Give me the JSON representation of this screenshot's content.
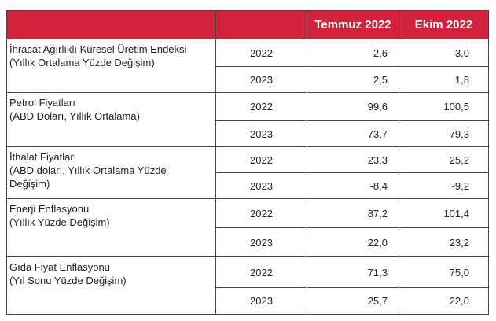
{
  "header": {
    "col_indicator": "",
    "col_year": "",
    "col_temmuz": "Temmuz 2022",
    "col_ekim": "Ekim 2022"
  },
  "colors": {
    "header_bg": "#d3223b",
    "header_text": "#ffffff",
    "border": "#444444"
  },
  "rows": [
    {
      "label_1": "İhracat Ağırlıklı Küresel Üretim Endeksi",
      "label_2": "(Yıllık Ortalama Yüzde Değişim)",
      "label_3": "",
      "years": [
        {
          "year": "2022",
          "temmuz": "2,6",
          "ekim": "3,0"
        },
        {
          "year": "2023",
          "temmuz": "2,5",
          "ekim": "1,8"
        }
      ]
    },
    {
      "label_1": "Petrol Fiyatları",
      "label_2": "(ABD Doları, Yıllık Ortalama)",
      "label_3": "",
      "years": [
        {
          "year": "2022",
          "temmuz": "99,6",
          "ekim": "100,5"
        },
        {
          "year": "2023",
          "temmuz": "73,7",
          "ekim": "79,3"
        }
      ]
    },
    {
      "label_1": "İthalat Fiyatları",
      "label_2": "(ABD doları, Yıllık Ortalama Yüzde",
      "label_3": "Değişim)",
      "years": [
        {
          "year": "2022",
          "temmuz": "23,3",
          "ekim": "25,2"
        },
        {
          "year": "2023",
          "temmuz": "-8,4",
          "ekim": "-9,2"
        }
      ]
    },
    {
      "label_1": "Enerji Enflasyonu",
      "label_2": "(Yıllık Yüzde Değişim)",
      "label_3": "",
      "years": [
        {
          "year": "2022",
          "temmuz": "87,2",
          "ekim": "101,4"
        },
        {
          "year": "2023",
          "temmuz": "22,0",
          "ekim": "23,2"
        }
      ]
    },
    {
      "label_1": "Gıda Fiyat Enflasyonu",
      "label_2": "(Yıl Sonu Yüzde Değişim)",
      "label_3": "",
      "years": [
        {
          "year": "2022",
          "temmuz": "71,3",
          "ekim": "75,0"
        },
        {
          "year": "2023",
          "temmuz": "25,7",
          "ekim": "22,0"
        }
      ]
    }
  ]
}
